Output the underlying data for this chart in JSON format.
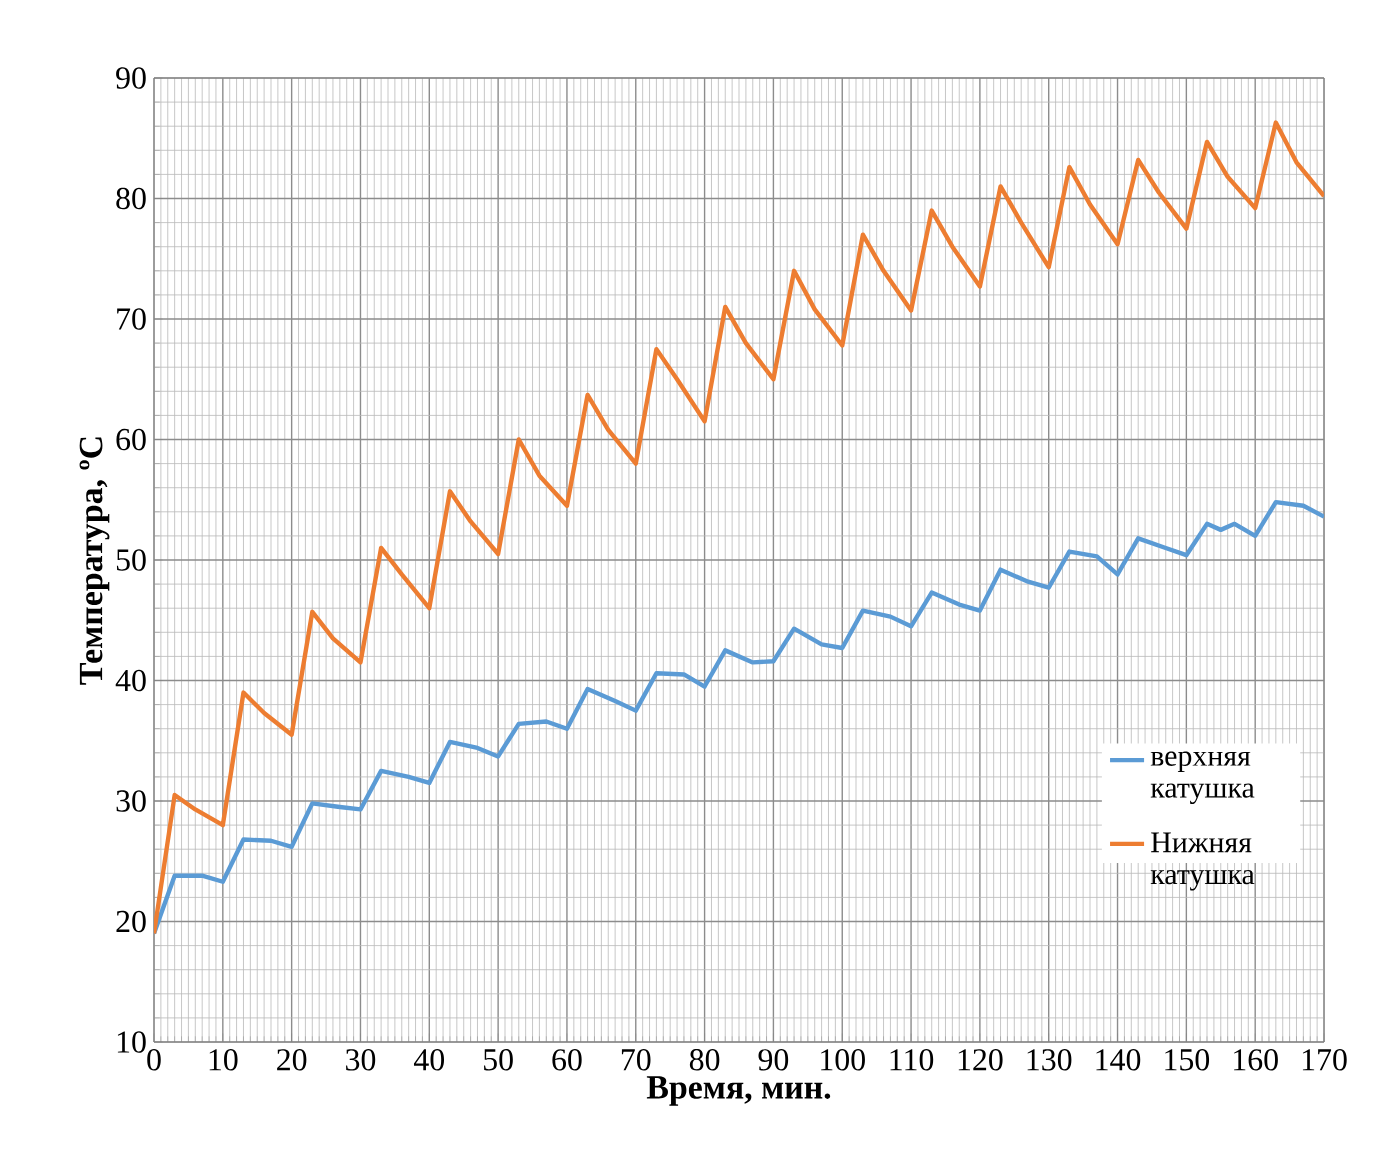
{
  "chart_data": {
    "type": "line",
    "xlabel": "Время, мин.",
    "ylabel": "Температура, ºС",
    "xlim": [
      0,
      170
    ],
    "ylim": [
      10,
      90
    ],
    "xticks": [
      0,
      10,
      20,
      30,
      40,
      50,
      60,
      70,
      80,
      90,
      100,
      110,
      120,
      130,
      140,
      150,
      160,
      170
    ],
    "yticks": [
      10,
      20,
      30,
      40,
      50,
      60,
      70,
      80,
      90
    ],
    "grid": true,
    "legend": "right",
    "marker": "none",
    "line_style": "solid",
    "series": [
      {
        "name": "верхняя катушка",
        "color": "#5b9bd5",
        "x": [
          0,
          3,
          7,
          10,
          13,
          17,
          20,
          23,
          27,
          30,
          33,
          37,
          40,
          43,
          47,
          50,
          53,
          57,
          60,
          63,
          67,
          70,
          73,
          77,
          80,
          83,
          87,
          90,
          93,
          97,
          100,
          103,
          107,
          110,
          113,
          117,
          120,
          123,
          127,
          130,
          133,
          137,
          140,
          143,
          147,
          150,
          153,
          155,
          157,
          160,
          163,
          167,
          170
        ],
        "values": [
          19,
          23.8,
          23.8,
          23.3,
          26.8,
          26.7,
          26.2,
          29.8,
          29.5,
          29.3,
          32.5,
          32,
          31.5,
          34.9,
          34.4,
          33.7,
          36.4,
          36.6,
          36,
          39.3,
          38.3,
          37.5,
          40.6,
          40.5,
          39.5,
          42.5,
          41.5,
          41.6,
          44.3,
          43,
          42.7,
          45.8,
          45.3,
          44.5,
          47.3,
          46.3,
          45.8,
          49.2,
          48.2,
          47.7,
          50.7,
          50.3,
          48.8,
          51.8,
          51,
          50.4,
          53,
          52.5,
          53,
          52,
          54.8,
          54.5,
          53.6
        ]
      },
      {
        "name": "Нижняя катушка",
        "color": "#ed7d31",
        "x": [
          0,
          3,
          6,
          10,
          13,
          16,
          20,
          23,
          26,
          30,
          33,
          36,
          40,
          43,
          46,
          50,
          53,
          56,
          60,
          63,
          66,
          70,
          73,
          76,
          80,
          83,
          86,
          90,
          93,
          96,
          100,
          103,
          106,
          110,
          113,
          116,
          120,
          123,
          126,
          130,
          133,
          136,
          140,
          143,
          146,
          150,
          153,
          156,
          160,
          163,
          166,
          170
        ],
        "values": [
          19,
          30.5,
          29.3,
          28,
          39,
          37.3,
          35.5,
          45.7,
          43.5,
          41.5,
          51,
          48.8,
          46,
          55.7,
          53.2,
          50.5,
          60,
          57,
          54.5,
          63.7,
          60.8,
          58,
          67.5,
          65,
          61.5,
          71,
          68,
          65,
          74,
          70.8,
          67.8,
          77,
          74,
          70.7,
          79,
          76,
          72.7,
          81,
          78,
          74.3,
          82.6,
          79.5,
          76.2,
          83.2,
          80.5,
          77.5,
          84.7,
          81.8,
          79.2,
          86.3,
          83,
          80.2
        ]
      }
    ]
  }
}
